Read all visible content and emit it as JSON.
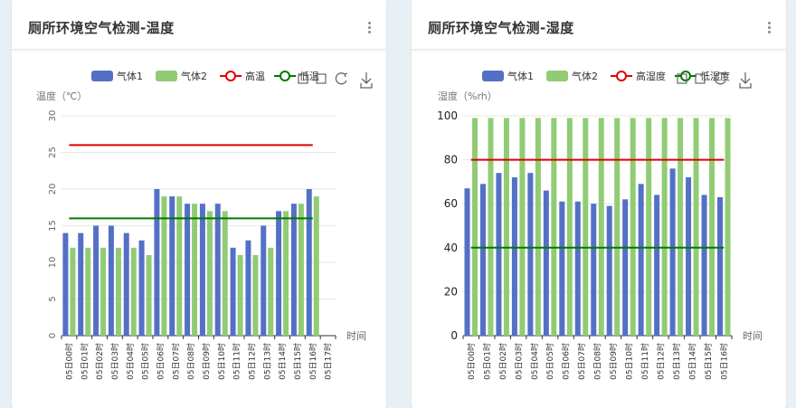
{
  "panels": [
    {
      "title": "厕所环境空气检测-温度",
      "colors": {
        "s1": "#5470c6",
        "s2": "#91cc75",
        "high": "#e00000",
        "low": "#007a00"
      },
      "icons": [
        "zoom-icon",
        "zoom-reset-icon",
        "restore-icon",
        "download-icon"
      ],
      "chart_data": {
        "type": "bar",
        "ylabel": "温度（℃）",
        "xlabel": "时间",
        "ylim": [
          0,
          30
        ],
        "yticks": [
          0,
          5,
          10,
          15,
          20,
          25,
          30
        ],
        "grid": "horizontal",
        "legend_position": "top-right",
        "categories": [
          "05日00时",
          "05日01时",
          "05日02时",
          "05日03时",
          "05日04时",
          "05日05时",
          "05日06时",
          "05日07时",
          "05日08时",
          "05日09时",
          "05日10时",
          "05日11时",
          "05日12时",
          "05日13时",
          "05日14时",
          "05日15时",
          "05日16时",
          "05日17时"
        ],
        "series": [
          {
            "name": "气体1",
            "type": "bar",
            "values": [
              14,
              14,
              15,
              15,
              14,
              13,
              20,
              19,
              18,
              18,
              18,
              12,
              13,
              15,
              17,
              18,
              20,
              null
            ]
          },
          {
            "name": "气体2",
            "type": "bar",
            "values": [
              12,
              12,
              12,
              12,
              12,
              11,
              19,
              19,
              18,
              17,
              17,
              11,
              11,
              12,
              17,
              18,
              19,
              null
            ]
          },
          {
            "name": "高温",
            "type": "line",
            "value": 26
          },
          {
            "name": "低温",
            "type": "line",
            "value": 16
          }
        ]
      }
    },
    {
      "title": "厕所环境空气检测-湿度",
      "colors": {
        "s1": "#5470c6",
        "s2": "#91cc75",
        "high": "#e00000",
        "low": "#007a00"
      },
      "icons": [
        "zoom-icon",
        "zoom-reset-icon",
        "restore-icon",
        "download-icon"
      ],
      "chart_data": {
        "type": "bar",
        "ylabel": "湿度（%rh）",
        "xlabel": "时间",
        "ylim": [
          0,
          100
        ],
        "yticks": [
          0,
          20,
          40,
          60,
          80,
          100
        ],
        "grid": "horizontal",
        "legend_position": "top-right",
        "categories": [
          "05日00时",
          "05日01时",
          "05日02时",
          "05日03时",
          "05日04时",
          "05日05时",
          "05日06时",
          "05日07时",
          "05日08时",
          "05日09时",
          "05日10时",
          "05日11时",
          "05日12时",
          "05日13时",
          "05日14时",
          "05日15时",
          "05日16时"
        ],
        "series": [
          {
            "name": "气体1",
            "type": "bar",
            "values": [
              67,
              69,
              74,
              72,
              74,
              66,
              61,
              61,
              60,
              59,
              62,
              69,
              64,
              76,
              72,
              64,
              63
            ]
          },
          {
            "name": "气体2",
            "type": "bar",
            "values": [
              99,
              99,
              99,
              99,
              99,
              99,
              99,
              99,
              99,
              99,
              99,
              99,
              99,
              99,
              99,
              99,
              99
            ]
          },
          {
            "name": "高湿度",
            "type": "line",
            "value": 80
          },
          {
            "name": "低湿度",
            "type": "line",
            "value": 40
          }
        ]
      }
    }
  ]
}
